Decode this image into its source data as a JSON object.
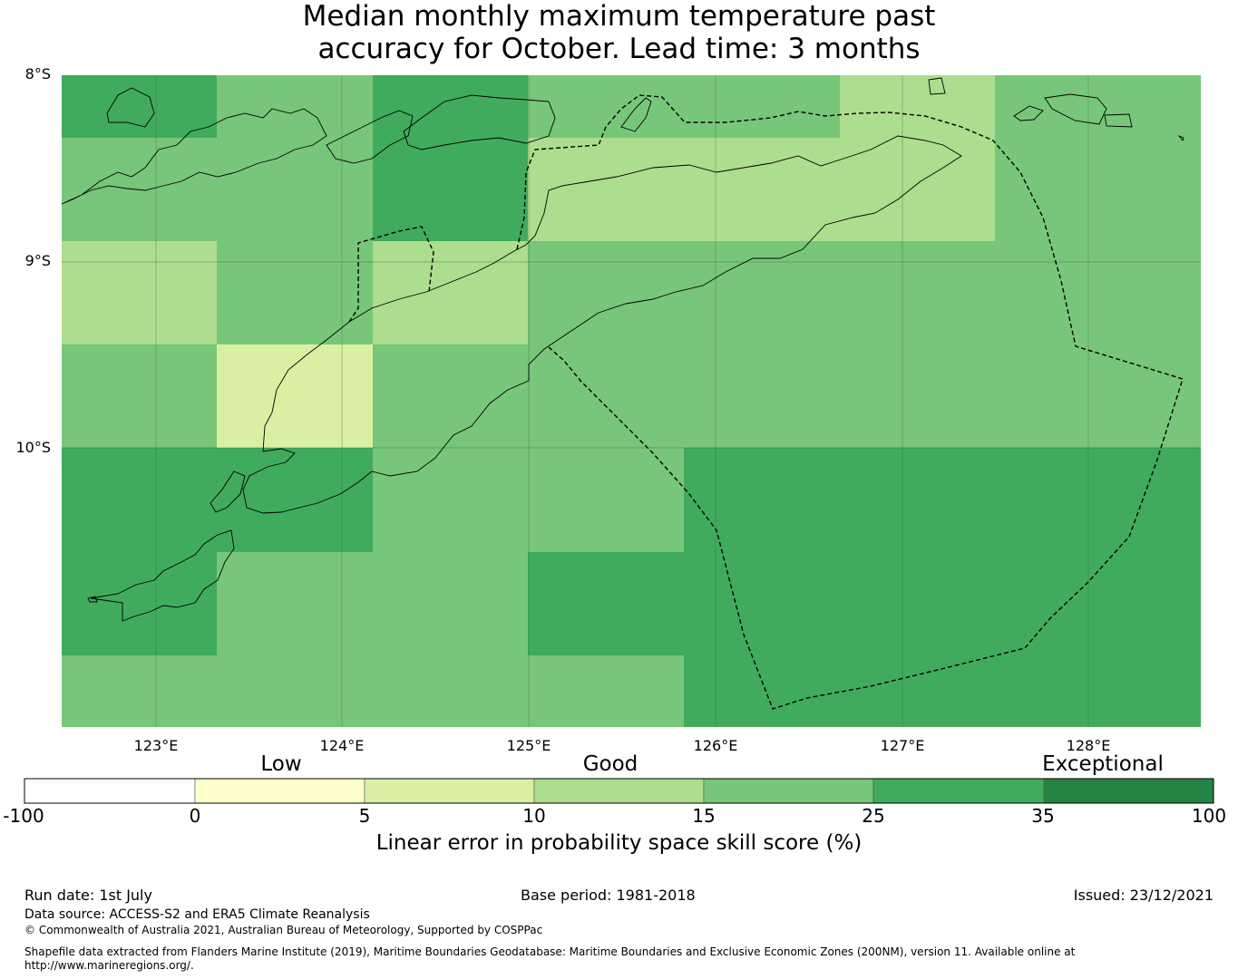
{
  "title": {
    "line1": "Median monthly maximum temperature past",
    "line2": "accuracy for October. Lead time: 3 months"
  },
  "map": {
    "lat_labels": [
      "8°S",
      "9°S",
      "10°S"
    ],
    "lon_labels": [
      "123°E",
      "124°E",
      "125°E",
      "126°E",
      "127°E",
      "128°E"
    ],
    "grid_skill_score_bins": [
      [
        "25-35",
        "15-25",
        "25-35",
        "15-25",
        "15-25",
        "10-15",
        "15-25"
      ],
      [
        "15-25",
        "15-25",
        "25-35",
        "10-15",
        "10-15",
        "10-15",
        "15-25"
      ],
      [
        "10-15",
        "15-25",
        "10-15",
        "15-25",
        "15-25",
        "15-25",
        "15-25"
      ],
      [
        "15-25",
        "5-10",
        "15-25",
        "15-25",
        "15-25",
        "15-25",
        "15-25"
      ],
      [
        "25-35",
        "25-35",
        "15-25",
        "15-25",
        "25-35",
        "25-35",
        "25-35"
      ],
      [
        "25-35",
        "15-25",
        "15-25",
        "25-35",
        "25-35",
        "25-35",
        "25-35"
      ],
      [
        "15-25",
        "15-25",
        "15-25",
        "15-25",
        "25-35",
        "25-35",
        "25-35"
      ]
    ]
  },
  "colorbar": {
    "categories": [
      "Low",
      "Good",
      "Exceptional"
    ],
    "ticks": [
      "-100",
      "0",
      "5",
      "10",
      "15",
      "25",
      "35",
      "100"
    ],
    "colors": [
      "#ffffff",
      "#ffffcc",
      "#d9f0a3",
      "#addd8e",
      "#78c679",
      "#41ab5d",
      "#238443"
    ],
    "label": "Linear error in probability space skill score (%)"
  },
  "footer": {
    "run_date": "Run date: 1st July",
    "base_period": "Base period: 1981-2018",
    "issued": "Issued: 23/12/2021",
    "data_source": "Data source: ACCESS-S2 and ERA5 Climate Reanalysis",
    "copyright": "© Commonwealth of Australia 2021, Australian Bureau of Meteorology, Supported by COSPPac",
    "shapefile_line1": "Shapefile data extracted from Flanders Marine Institute (2019), Maritime Boundaries Geodatabase: Maritime Boundaries and Exclusive Economic Zones (200NM), version 11. Available online at",
    "shapefile_line2": "http://www.marineregions.org/."
  }
}
